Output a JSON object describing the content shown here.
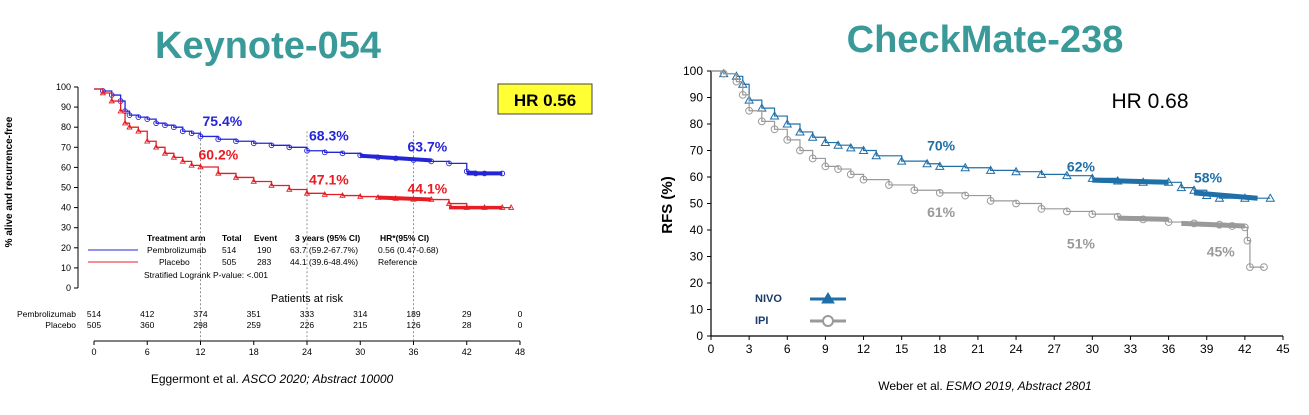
{
  "left": {
    "title": "Keynote-054",
    "hr_badge": "HR  0.56",
    "ylabel": "% alive and recurrence-free",
    "y_ticks": [
      "0",
      "10",
      "20",
      "30",
      "40",
      "50",
      "60",
      "70",
      "80",
      "90",
      "100"
    ],
    "x_ticks": [
      "0",
      "6",
      "12",
      "18",
      "24",
      "30",
      "36",
      "42",
      "48"
    ],
    "annotations": [
      {
        "text": "75.4%",
        "x": 12,
        "y": 76,
        "series": "Pembrolizumab"
      },
      {
        "text": "68.3%",
        "x": 24,
        "y": 69,
        "series": "Pembrolizumab"
      },
      {
        "text": "63.7%",
        "x": 36,
        "y": 64,
        "series": "Pembrolizumab"
      },
      {
        "text": "60.2%",
        "x": 12,
        "y": 60,
        "series": "Placebo"
      },
      {
        "text": "47.1%",
        "x": 24,
        "y": 47,
        "series": "Placebo"
      },
      {
        "text": "44.1%",
        "x": 36,
        "y": 44,
        "series": "Placebo"
      }
    ],
    "table": {
      "headers": [
        "Treatment arm",
        "Total",
        "Event",
        "3 years (95% CI)",
        "HR*(95% CI)"
      ],
      "rows": [
        [
          "Pembrolizumab",
          "514",
          "190",
          "63.7 (59.2-67.7%)",
          "0.56 (0.47-0.68)"
        ],
        [
          "Placebo",
          "505",
          "283",
          "44.1 (39.6-48.4%)",
          "Reference"
        ]
      ],
      "footnote": "Stratified Logrank P-value: <.001"
    },
    "risk": {
      "title": "Patients at risk",
      "rows": [
        {
          "label": "Pembrolizumab",
          "values": [
            "514",
            "412",
            "374",
            "351",
            "333",
            "314",
            "189",
            "29",
            "0"
          ]
        },
        {
          "label": "Placebo",
          "values": [
            "505",
            "360",
            "298",
            "259",
            "226",
            "215",
            "126",
            "28",
            "0"
          ]
        }
      ]
    },
    "citation_prefix": "Eggermont et al. ",
    "citation_italic": "ASCO 2020; Abstract 10000"
  },
  "right": {
    "title": "CheckMate-238",
    "hr_text": "HR 0.68",
    "ylabel": "RFS (%)",
    "y_ticks": [
      "0",
      "10",
      "20",
      "30",
      "40",
      "50",
      "60",
      "70",
      "80",
      "90",
      "100"
    ],
    "x_ticks": [
      "0",
      "3",
      "6",
      "9",
      "12",
      "15",
      "18",
      "21",
      "24",
      "27",
      "30",
      "33",
      "36",
      "39",
      "42",
      "45"
    ],
    "annotations": [
      {
        "text": "70%",
        "x": 17,
        "y": 70,
        "series": "NIVO"
      },
      {
        "text": "62%",
        "x": 28,
        "y": 62,
        "series": "NIVO"
      },
      {
        "text": "58%",
        "x": 38,
        "y": 58,
        "series": "NIVO"
      },
      {
        "text": "61%",
        "x": 17,
        "y": 45,
        "series": "IPI"
      },
      {
        "text": "51%",
        "x": 28,
        "y": 33,
        "series": "IPI"
      },
      {
        "text": "45%",
        "x": 39,
        "y": 30,
        "series": "IPI"
      }
    ],
    "legend": [
      {
        "name": "NIVO"
      },
      {
        "name": "IPI"
      }
    ],
    "citation_prefix": "Weber et al. ",
    "citation_italic": "ESMO 2019, Abstract 2801"
  },
  "colors": {
    "title_teal": "#3a9a9a",
    "pembro": "#2525d8",
    "placebo": "#e81c24",
    "nivo": "#1f6fa8",
    "ipi": "#9a9a9a",
    "badge_bg": "#ffff33"
  },
  "chart_data": [
    {
      "type": "line",
      "title": "Keynote-054",
      "ylabel": "% alive and recurrence-free",
      "xlabel": "",
      "xlim": [
        0,
        48
      ],
      "ylim": [
        0,
        100
      ],
      "series": [
        {
          "name": "Pembrolizumab",
          "x": [
            0,
            1,
            2,
            3,
            3.5,
            4,
            5,
            6,
            7,
            8,
            9,
            10,
            11,
            12,
            14,
            16,
            18,
            20,
            22,
            24,
            26,
            28,
            30,
            32,
            34,
            36,
            38,
            40,
            42,
            43,
            44,
            46
          ],
          "y": [
            99,
            98,
            96,
            93,
            88,
            86,
            85,
            84,
            82,
            81,
            80,
            78,
            77,
            75.4,
            74,
            73,
            72,
            71,
            70,
            68.3,
            67.5,
            67,
            66,
            65,
            64.5,
            63.7,
            63,
            62,
            58,
            57,
            57,
            57
          ]
        },
        {
          "name": "Placebo",
          "x": [
            0,
            1,
            2,
            3,
            3.5,
            4,
            5,
            6,
            7,
            8,
            9,
            10,
            11,
            12,
            14,
            16,
            18,
            20,
            22,
            24,
            26,
            28,
            30,
            32,
            34,
            36,
            38,
            40,
            42,
            44,
            46,
            47
          ],
          "y": [
            99,
            97,
            93,
            88,
            82,
            80,
            78,
            73,
            70,
            67,
            65,
            63,
            61,
            60.2,
            57,
            55,
            53,
            51,
            49,
            47.1,
            46.5,
            46,
            45.5,
            45,
            44.5,
            44.1,
            44,
            42,
            40,
            40,
            40,
            40
          ]
        }
      ]
    },
    {
      "type": "line",
      "title": "CheckMate-238",
      "ylabel": "RFS (%)",
      "xlabel": "",
      "xlim": [
        0,
        45
      ],
      "ylim": [
        0,
        100
      ],
      "series": [
        {
          "name": "NIVO",
          "x": [
            0,
            1,
            2,
            2.5,
            3,
            4,
            5,
            6,
            7,
            8,
            9,
            10,
            11,
            12,
            13,
            15,
            17,
            18,
            20,
            22,
            24,
            26,
            28,
            30,
            32,
            34,
            36,
            37,
            38,
            39,
            40,
            42,
            44
          ],
          "y": [
            100,
            99,
            98,
            95,
            89,
            86,
            83,
            80,
            77,
            75,
            73,
            72,
            71,
            70,
            68,
            66,
            65,
            64,
            63.5,
            62.5,
            62,
            61,
            60.5,
            59.5,
            58.5,
            58,
            58,
            56,
            55,
            53,
            52,
            52,
            52
          ]
        },
        {
          "name": "IPI",
          "x": [
            0,
            1,
            2,
            2.5,
            3,
            4,
            5,
            6,
            7,
            8,
            9,
            10,
            11,
            12,
            14,
            16,
            18,
            20,
            22,
            24,
            26,
            28,
            30,
            32,
            34,
            36,
            38,
            40,
            41,
            42,
            42.2,
            42.4,
            43.5
          ],
          "y": [
            100,
            99,
            96,
            91,
            85,
            81,
            78,
            74,
            70,
            67,
            64,
            63,
            61,
            59,
            57,
            55,
            54,
            53,
            51,
            50,
            48,
            47,
            46,
            45,
            44,
            43,
            42.5,
            42,
            41.5,
            41,
            36,
            26,
            26
          ]
        }
      ]
    }
  ]
}
